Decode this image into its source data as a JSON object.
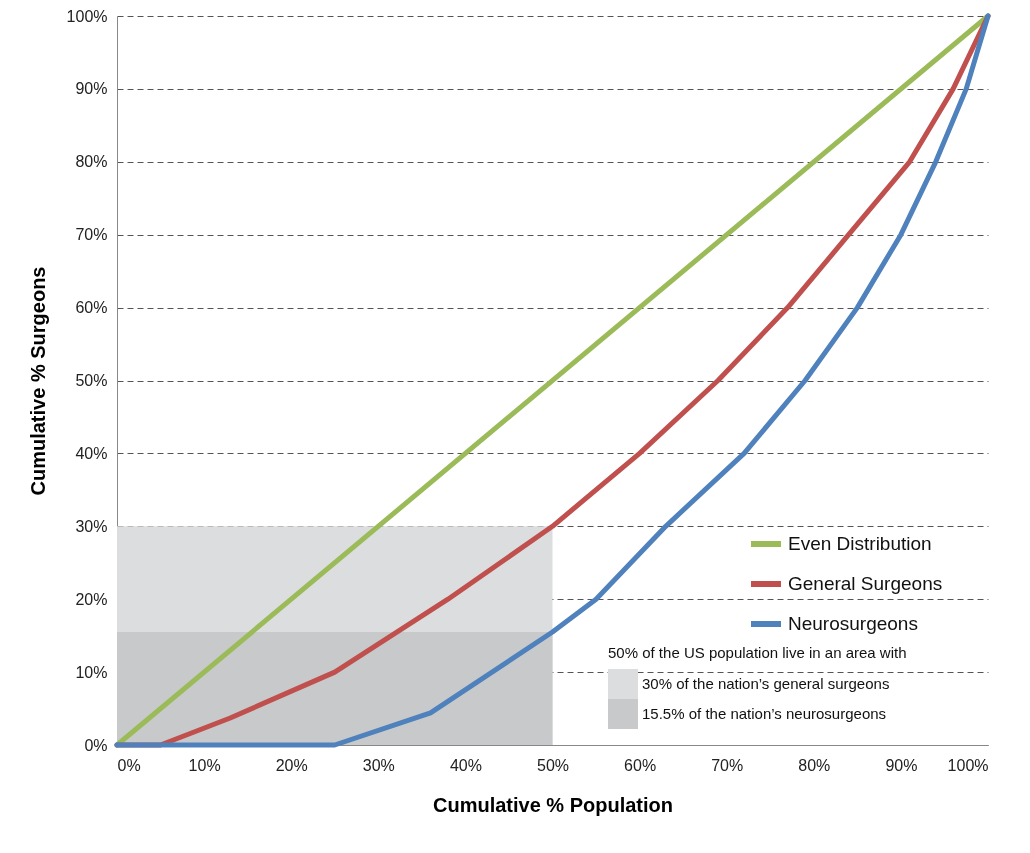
{
  "chart_data": {
    "type": "line",
    "xlabel": "Cumulative % Population",
    "ylabel": "Cumulative % Surgeons",
    "xlim": [
      0,
      100
    ],
    "ylim": [
      0,
      100
    ],
    "xticks": [
      {
        "value": 0,
        "label": "0%"
      },
      {
        "value": 10,
        "label": "10%"
      },
      {
        "value": 20,
        "label": "20%"
      },
      {
        "value": 30,
        "label": "30%"
      },
      {
        "value": 40,
        "label": "40%"
      },
      {
        "value": 50,
        "label": "50%"
      },
      {
        "value": 60,
        "label": "60%"
      },
      {
        "value": 70,
        "label": "70%"
      },
      {
        "value": 80,
        "label": "80%"
      },
      {
        "value": 90,
        "label": "90%"
      },
      {
        "value": 100,
        "label": "100%"
      }
    ],
    "yticks": [
      {
        "value": 0,
        "label": "0%"
      },
      {
        "value": 10,
        "label": "10%"
      },
      {
        "value": 20,
        "label": "20%"
      },
      {
        "value": 30,
        "label": "30%"
      },
      {
        "value": 40,
        "label": "40%"
      },
      {
        "value": 50,
        "label": "50%"
      },
      {
        "value": 60,
        "label": "60%"
      },
      {
        "value": 70,
        "label": "70%"
      },
      {
        "value": 80,
        "label": "80%"
      },
      {
        "value": 90,
        "label": "90%"
      },
      {
        "value": 100,
        "label": "100%"
      }
    ],
    "grid": "y",
    "legend": "bottom right",
    "line_style": "solid",
    "marker": "none",
    "annotations": [
      "50% of the US population live in an area with"
    ],
    "series": [
      {
        "name": "30% of the nation’s general surgeons",
        "type": "area",
        "color": "#dcdddf",
        "x": [
          0,
          50
        ],
        "values": [
          30,
          30
        ]
      },
      {
        "name": "15.5% of the nation’s neurosurgeons",
        "type": "area",
        "color": "#c8c9cb",
        "x": [
          0,
          50
        ],
        "values": [
          15.5,
          15.5
        ]
      },
      {
        "name": "Even Distribution",
        "color": "#9bbb59",
        "x": [
          0,
          100
        ],
        "values": [
          0,
          100
        ]
      },
      {
        "name": "General Surgeons",
        "color": "#c0504d",
        "x": [
          0,
          5,
          13,
          25,
          38,
          50,
          60,
          69,
          77,
          84,
          91,
          96,
          100
        ],
        "values": [
          0,
          0,
          3.7,
          10,
          20,
          30,
          40,
          50,
          60,
          70,
          80,
          90,
          100
        ]
      },
      {
        "name": "Neurosurgeons",
        "color": "#4f81bd",
        "x": [
          0,
          25,
          36,
          50,
          55,
          63,
          72,
          79,
          85,
          90,
          94,
          97.5,
          100
        ],
        "values": [
          0,
          0,
          4.4,
          15.5,
          20,
          30,
          40,
          50,
          60,
          70,
          80,
          90,
          100
        ]
      }
    ]
  }
}
